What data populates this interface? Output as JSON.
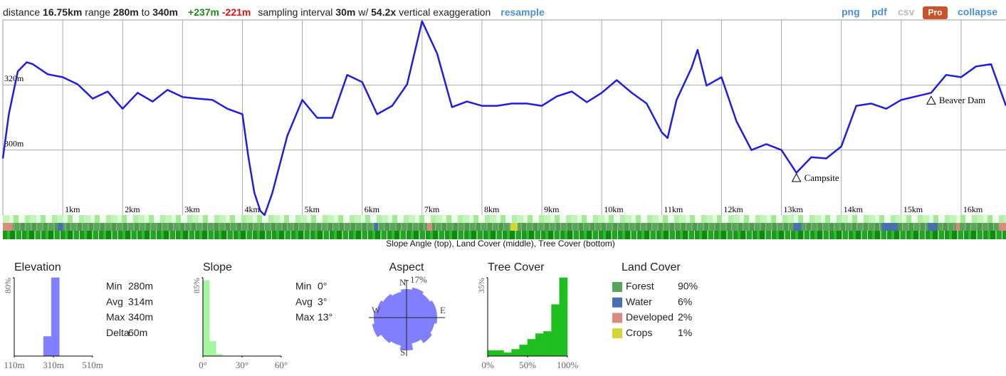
{
  "header": {
    "parts": [
      "distance",
      "16.75km",
      "range",
      "280m",
      "to",
      "340m",
      "+237m",
      "-221m",
      "sampling interval",
      "30m",
      "w/",
      "54.2x",
      "vertical exaggeration",
      "resample"
    ],
    "actions": [
      "png",
      "pdf",
      "csv",
      "Pro",
      "collapse"
    ]
  },
  "chart_data": [
    {
      "type": "line",
      "color": "#1f1fdb",
      "x": [
        0,
        0.1,
        0.25,
        0.4,
        0.5,
        0.75,
        1,
        1.25,
        1.5,
        1.75,
        2,
        2.25,
        2.5,
        2.75,
        3,
        3.25,
        3.5,
        3.75,
        4,
        4.1,
        4.2,
        4.3,
        4.37,
        4.5,
        4.75,
        5,
        5.25,
        5.5,
        5.75,
        6,
        6.25,
        6.5,
        6.75,
        7,
        7.25,
        7.5,
        7.75,
        8,
        8.25,
        8.5,
        8.75,
        9,
        9.25,
        9.5,
        9.75,
        10,
        10.25,
        10.5,
        10.75,
        11,
        11.1,
        11.25,
        11.5,
        11.6,
        11.75,
        12,
        12.25,
        12.5,
        12.75,
        13,
        13.25,
        13.5,
        13.75,
        14,
        14.25,
        14.5,
        14.75,
        15,
        15.25,
        15.5,
        15.75,
        16,
        16.25,
        16.5,
        16.75
      ],
      "values": [
        297.4,
        311,
        324.2,
        327,
        326.4,
        323.3,
        322.4,
        320.2,
        315.8,
        318,
        312.7,
        317.6,
        314.9,
        318.5,
        316.3,
        315.8,
        315.4,
        312.7,
        311,
        297.8,
        286.8,
        281.3,
        280,
        286.8,
        304.4,
        315.4,
        309.9,
        309.9,
        323.1,
        320.9,
        311,
        313.6,
        320.2,
        339.6,
        329.7,
        313.2,
        314.9,
        313.6,
        313.6,
        314.3,
        314.3,
        313.6,
        316.5,
        318,
        314.7,
        317.6,
        321.5,
        317.6,
        314.3,
        305.5,
        303.7,
        315.4,
        325.3,
        330.8,
        319.8,
        322.4,
        308.8,
        300,
        301.8,
        300,
        293,
        297.8,
        297.4,
        301.1,
        313.6,
        314.3,
        312.7,
        315.4,
        316.5,
        317.6,
        323.1,
        322.4,
        325.7,
        326.4,
        313.6
      ],
      "xlim": [
        0,
        16.75
      ],
      "xticks": [
        {
          "value": 1,
          "label": "1km"
        },
        {
          "value": 2,
          "label": "2km"
        },
        {
          "value": 3,
          "label": "3km"
        },
        {
          "value": 4,
          "label": "4km"
        },
        {
          "value": 5,
          "label": "5km"
        },
        {
          "value": 6,
          "label": "6km"
        },
        {
          "value": 7,
          "label": "7km"
        },
        {
          "value": 8,
          "label": "8km"
        },
        {
          "value": 9,
          "label": "9km"
        },
        {
          "value": 10,
          "label": "10km"
        },
        {
          "value": 11,
          "label": "11km"
        },
        {
          "value": 12,
          "label": "12km"
        },
        {
          "value": 13,
          "label": "13km"
        },
        {
          "value": 14,
          "label": "14km"
        },
        {
          "value": 15,
          "label": "15km"
        },
        {
          "value": 16,
          "label": "16km"
        }
      ],
      "ylim": [
        280,
        340
      ],
      "yticks": [
        {
          "value": 300,
          "label": "300m"
        },
        {
          "value": 320,
          "label": "320m"
        }
      ],
      "grid": true,
      "annotations": [
        {
          "text": "Campsite",
          "x": 13.25,
          "y": 291.4
        },
        {
          "text": "Beaver Dam",
          "x": 15.5,
          "y": 315.2
        }
      ],
      "caption": "Slope Angle (top), Land Cover (middle), Tree Cover (bottom)"
    },
    {
      "type": "histogram",
      "title": "Elevation",
      "color": "#8080ff",
      "bins": [
        260,
        300,
        340
      ],
      "values": [
        20,
        80
      ],
      "xlim": [
        110,
        510
      ],
      "xticks": [
        {
          "value": 110,
          "label": "110m"
        },
        {
          "value": 310,
          "label": "310m"
        },
        {
          "value": 510,
          "label": "510m"
        }
      ],
      "ylim": [
        0,
        80
      ],
      "yticks": [
        {
          "value": 80,
          "label": "80%"
        }
      ],
      "stats": [
        {
          "label": "Min",
          "value": "280m"
        },
        {
          "label": "Avg",
          "value": "314m"
        },
        {
          "label": "Max",
          "value": "340m"
        },
        {
          "label": "Delta",
          "value": "60m"
        }
      ]
    },
    {
      "type": "histogram",
      "title": "Slope",
      "color": "#a6f5a0",
      "bins": [
        0,
        5,
        10,
        15
      ],
      "values": [
        82,
        16,
        2
      ],
      "xlim": [
        0,
        60
      ],
      "xticks": [
        {
          "value": 0,
          "label": "0°"
        },
        {
          "value": 30,
          "label": "30°"
        },
        {
          "value": 60,
          "label": "60°"
        }
      ],
      "ylim": [
        0,
        85
      ],
      "yticks": [
        {
          "value": 85,
          "label": "85%"
        }
      ],
      "stats": [
        {
          "label": "Min",
          "value": "0°"
        },
        {
          "label": "Avg",
          "value": "3°"
        },
        {
          "label": "Max",
          "value": "13°"
        }
      ]
    },
    {
      "type": "rose",
      "title": "Aspect",
      "color": "#8080ff",
      "compass": [
        "N",
        "E",
        "S",
        "W"
      ],
      "values": [
        13,
        14,
        13,
        14,
        14,
        13,
        14,
        12,
        15,
        13,
        14,
        16,
        15,
        14,
        13,
        12
      ],
      "rlim": [
        0,
        17
      ],
      "rticks": [
        {
          "value": 17,
          "label": "17%"
        }
      ]
    },
    {
      "type": "histogram",
      "title": "Tree Cover",
      "color": "#1fbf1f",
      "bins": [
        0,
        10,
        20,
        30,
        40,
        50,
        60,
        70,
        80,
        90,
        100
      ],
      "values": [
        2.5,
        2.5,
        1.5,
        3,
        5,
        7.5,
        10,
        11,
        23,
        35
      ],
      "xlim": [
        0,
        100
      ],
      "xticks": [
        {
          "value": 0,
          "label": "0%"
        },
        {
          "value": 50,
          "label": "50%"
        },
        {
          "value": 100,
          "label": "100%"
        }
      ],
      "ylim": [
        0,
        35
      ],
      "yticks": [
        {
          "value": 35,
          "label": "35%"
        }
      ]
    }
  ],
  "land_cover": {
    "title": "Land Cover",
    "items": [
      {
        "name": "Forest",
        "color": "#5aa55a",
        "share": "90%"
      },
      {
        "name": "Water",
        "color": "#4a6fb0",
        "share": "6%"
      },
      {
        "name": "Developed",
        "color": "#d98b7e",
        "share": "2%"
      },
      {
        "name": "Crops",
        "color": "#d4d43a",
        "share": "1%"
      }
    ]
  }
}
